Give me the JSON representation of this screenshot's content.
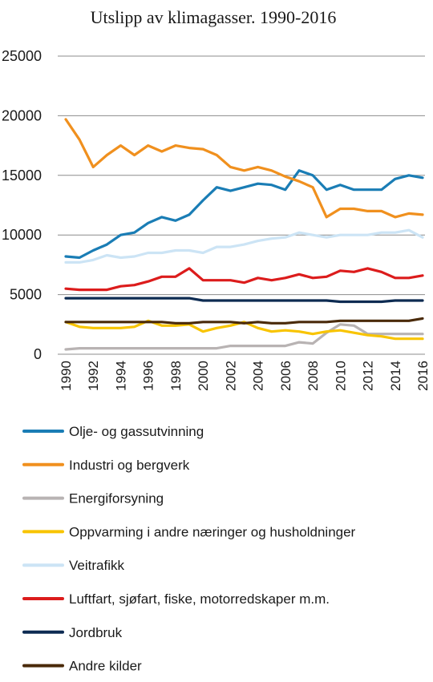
{
  "chart_data": {
    "type": "line",
    "title": "Utslipp av klimagasser. 1990-2016",
    "xlabel": "",
    "ylabel": "",
    "ylim": [
      0,
      25000
    ],
    "yticks": [
      "0",
      "5000",
      "10000",
      "15000",
      "20000",
      "25000"
    ],
    "xticks": [
      "1990",
      "1992",
      "1994",
      "1996",
      "1998",
      "2000",
      "2002",
      "2004",
      "2006",
      "2008",
      "2010",
      "2012",
      "2014",
      "2016"
    ],
    "grid": true,
    "legend_position": "bottom",
    "x": [
      1990,
      1991,
      1992,
      1993,
      1994,
      1995,
      1996,
      1997,
      1998,
      1999,
      2000,
      2001,
      2002,
      2003,
      2004,
      2005,
      2006,
      2007,
      2008,
      2009,
      2010,
      2011,
      2012,
      2013,
      2014,
      2015,
      2016
    ],
    "series": [
      {
        "name": "Olje- og gassutvinning",
        "color": "#1a7db5",
        "values": [
          8200,
          8100,
          8700,
          9200,
          10000,
          10200,
          11000,
          11500,
          11200,
          11700,
          12900,
          14000,
          13700,
          14000,
          14300,
          14200,
          13800,
          15400,
          15000,
          13800,
          14200,
          13800,
          13800,
          13800,
          14700,
          15000,
          14800
        ]
      },
      {
        "name": "Industri og bergverk",
        "color": "#f0901e",
        "values": [
          19700,
          18000,
          15700,
          16700,
          17500,
          16700,
          17500,
          17000,
          17500,
          17300,
          17200,
          16700,
          15700,
          15400,
          15700,
          15400,
          14900,
          14500,
          14000,
          11500,
          12200,
          12200,
          12000,
          12000,
          11500,
          11800,
          11700
        ]
      },
      {
        "name": "Energiforsyning",
        "color": "#b8b3b3",
        "values": [
          400,
          500,
          500,
          500,
          500,
          500,
          500,
          500,
          500,
          500,
          500,
          500,
          700,
          700,
          700,
          700,
          700,
          1000,
          900,
          1800,
          2500,
          2400,
          1700,
          1700,
          1700,
          1700,
          1700
        ]
      },
      {
        "name": "Oppvarming i andre næringer og husholdninger",
        "color": "#f8c400",
        "values": [
          2700,
          2300,
          2200,
          2200,
          2200,
          2300,
          2800,
          2400,
          2400,
          2500,
          1900,
          2200,
          2400,
          2700,
          2200,
          1900,
          2000,
          1900,
          1700,
          1900,
          2000,
          1800,
          1600,
          1500,
          1300,
          1300,
          1300
        ]
      },
      {
        "name": "Veitrafikk",
        "color": "#cce4f5",
        "values": [
          7700,
          7700,
          7900,
          8300,
          8100,
          8200,
          8500,
          8500,
          8700,
          8700,
          8500,
          9000,
          9000,
          9200,
          9500,
          9700,
          9800,
          10200,
          10000,
          9800,
          10000,
          10000,
          10000,
          10200,
          10200,
          10400,
          9800
        ]
      },
      {
        "name": "Luftfart, sjøfart, fiske, motorredskaper m.m.",
        "color": "#dc1c1c",
        "values": [
          5500,
          5400,
          5400,
          5400,
          5700,
          5800,
          6100,
          6500,
          6500,
          7200,
          6200,
          6200,
          6200,
          6000,
          6400,
          6200,
          6400,
          6700,
          6400,
          6500,
          7000,
          6900,
          7200,
          6900,
          6400,
          6400,
          6600
        ]
      },
      {
        "name": "Jordbruk",
        "color": "#0d2b52",
        "values": [
          4700,
          4700,
          4700,
          4700,
          4700,
          4700,
          4700,
          4700,
          4700,
          4700,
          4500,
          4500,
          4500,
          4500,
          4500,
          4500,
          4500,
          4500,
          4500,
          4500,
          4400,
          4400,
          4400,
          4400,
          4500,
          4500,
          4500
        ]
      },
      {
        "name": "Andre kilder",
        "color": "#4a2a0a",
        "values": [
          2700,
          2700,
          2700,
          2700,
          2700,
          2700,
          2700,
          2700,
          2600,
          2600,
          2700,
          2700,
          2700,
          2600,
          2700,
          2600,
          2600,
          2700,
          2700,
          2700,
          2800,
          2800,
          2800,
          2800,
          2800,
          2800,
          3000
        ]
      }
    ]
  }
}
